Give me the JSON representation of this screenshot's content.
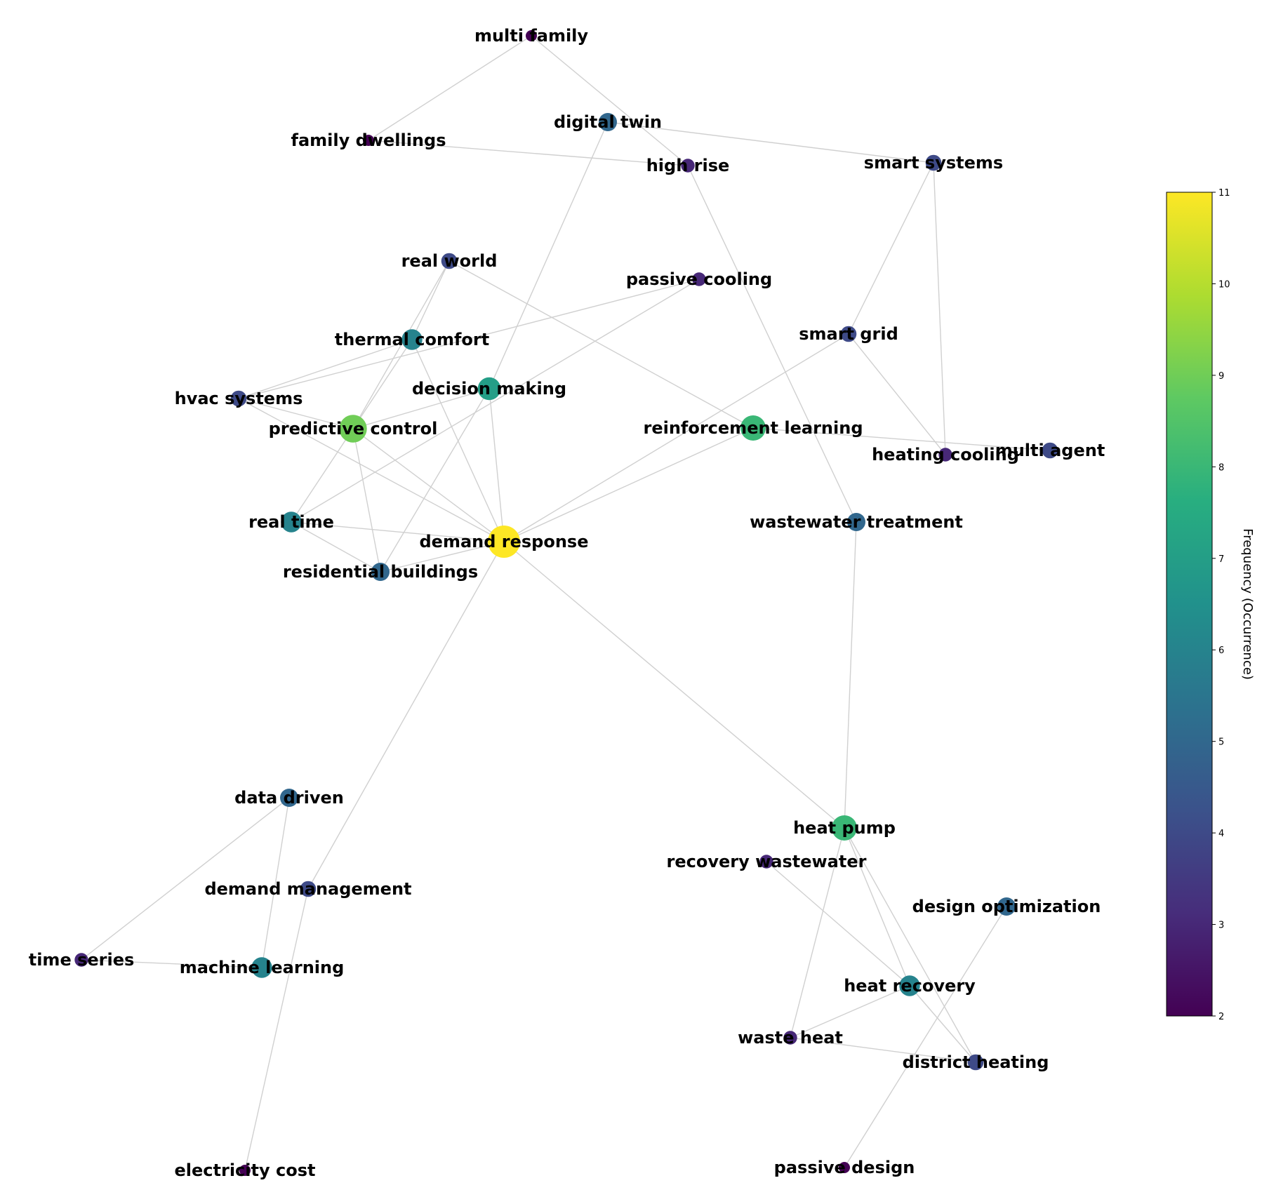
{
  "chart_data": {
    "type": "network",
    "colorbar": {
      "label": "Frequency (Occurrence)",
      "min": 2,
      "max": 11,
      "ticks": [
        2,
        3,
        4,
        5,
        6,
        7,
        8,
        9,
        10,
        11
      ],
      "colormap": "viridis"
    },
    "nodes": [
      {
        "id": "multi family",
        "frequency": 2
      },
      {
        "id": "family dwellings",
        "frequency": 2
      },
      {
        "id": "digital twin",
        "frequency": 5
      },
      {
        "id": "high rise",
        "frequency": 3
      },
      {
        "id": "smart systems",
        "frequency": 4
      },
      {
        "id": "real world",
        "frequency": 4
      },
      {
        "id": "passive cooling",
        "frequency": 3
      },
      {
        "id": "thermal comfort",
        "frequency": 6
      },
      {
        "id": "smart grid",
        "frequency": 4
      },
      {
        "id": "decision making",
        "frequency": 7
      },
      {
        "id": "hvac systems",
        "frequency": 4
      },
      {
        "id": "predictive control",
        "frequency": 9
      },
      {
        "id": "reinforcement learning",
        "frequency": 8
      },
      {
        "id": "heating cooling",
        "frequency": 3
      },
      {
        "id": "multi agent",
        "frequency": 4
      },
      {
        "id": "real time",
        "frequency": 6
      },
      {
        "id": "wastewater treatment",
        "frequency": 5
      },
      {
        "id": "demand response",
        "frequency": 11
      },
      {
        "id": "residential buildings",
        "frequency": 5
      },
      {
        "id": "data driven",
        "frequency": 5
      },
      {
        "id": "heat pump",
        "frequency": 8
      },
      {
        "id": "recovery wastewater",
        "frequency": 3
      },
      {
        "id": "demand management",
        "frequency": 4
      },
      {
        "id": "design optimization",
        "frequency": 5
      },
      {
        "id": "time series",
        "frequency": 3
      },
      {
        "id": "machine learning",
        "frequency": 6
      },
      {
        "id": "heat recovery",
        "frequency": 6
      },
      {
        "id": "waste heat",
        "frequency": 3
      },
      {
        "id": "district heating",
        "frequency": 4
      },
      {
        "id": "electricity cost",
        "frequency": 2
      },
      {
        "id": "passive design",
        "frequency": 2
      }
    ],
    "edges": [
      [
        "multi family",
        "family dwellings"
      ],
      [
        "multi family",
        "high rise"
      ],
      [
        "family dwellings",
        "high rise"
      ],
      [
        "digital twin",
        "smart systems"
      ],
      [
        "digital twin",
        "decision making"
      ],
      [
        "high rise",
        "wastewater treatment"
      ],
      [
        "smart systems",
        "smart grid"
      ],
      [
        "smart systems",
        "heating cooling"
      ],
      [
        "smart grid",
        "heating cooling"
      ],
      [
        "smart grid",
        "demand response"
      ],
      [
        "real world",
        "thermal comfort"
      ],
      [
        "real world",
        "predictive control"
      ],
      [
        "real world",
        "reinforcement learning"
      ],
      [
        "passive cooling",
        "hvac systems"
      ],
      [
        "passive cooling",
        "real time"
      ],
      [
        "thermal comfort",
        "hvac systems"
      ],
      [
        "thermal comfort",
        "predictive control"
      ],
      [
        "thermal comfort",
        "demand response"
      ],
      [
        "decision making",
        "predictive control"
      ],
      [
        "decision making",
        "demand response"
      ],
      [
        "decision making",
        "residential buildings"
      ],
      [
        "hvac systems",
        "demand response"
      ],
      [
        "hvac systems",
        "predictive control"
      ],
      [
        "predictive control",
        "demand response"
      ],
      [
        "predictive control",
        "real time"
      ],
      [
        "predictive control",
        "residential buildings"
      ],
      [
        "reinforcement learning",
        "multi agent"
      ],
      [
        "reinforcement learning",
        "demand response"
      ],
      [
        "real time",
        "demand response"
      ],
      [
        "real time",
        "residential buildings"
      ],
      [
        "residential buildings",
        "demand response"
      ],
      [
        "demand response",
        "heat pump"
      ],
      [
        "demand response",
        "demand management"
      ],
      [
        "wastewater treatment",
        "heat pump"
      ],
      [
        "data driven",
        "time series"
      ],
      [
        "data driven",
        "machine learning"
      ],
      [
        "time series",
        "machine learning"
      ],
      [
        "demand management",
        "electricity cost"
      ],
      [
        "heat pump",
        "heat recovery"
      ],
      [
        "heat pump",
        "district heating"
      ],
      [
        "heat pump",
        "waste heat"
      ],
      [
        "recovery wastewater",
        "heat recovery"
      ],
      [
        "heat recovery",
        "waste heat"
      ],
      [
        "heat recovery",
        "district heating"
      ],
      [
        "waste heat",
        "district heating"
      ],
      [
        "design optimization",
        "passive design"
      ]
    ]
  }
}
